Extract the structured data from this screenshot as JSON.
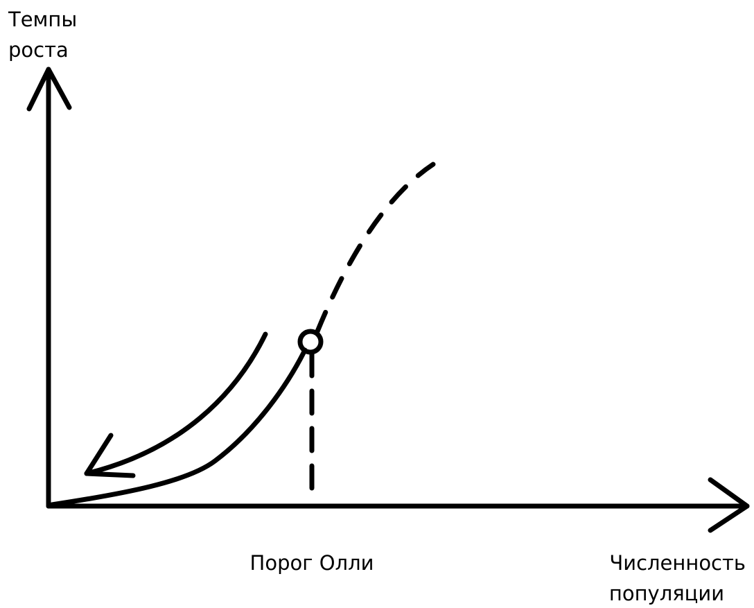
{
  "y_axis_label": [
    "Темпы",
    "роста"
  ],
  "threshold_label": "Порог Олли",
  "x_axis_label": [
    "Численность",
    "популяции"
  ]
}
